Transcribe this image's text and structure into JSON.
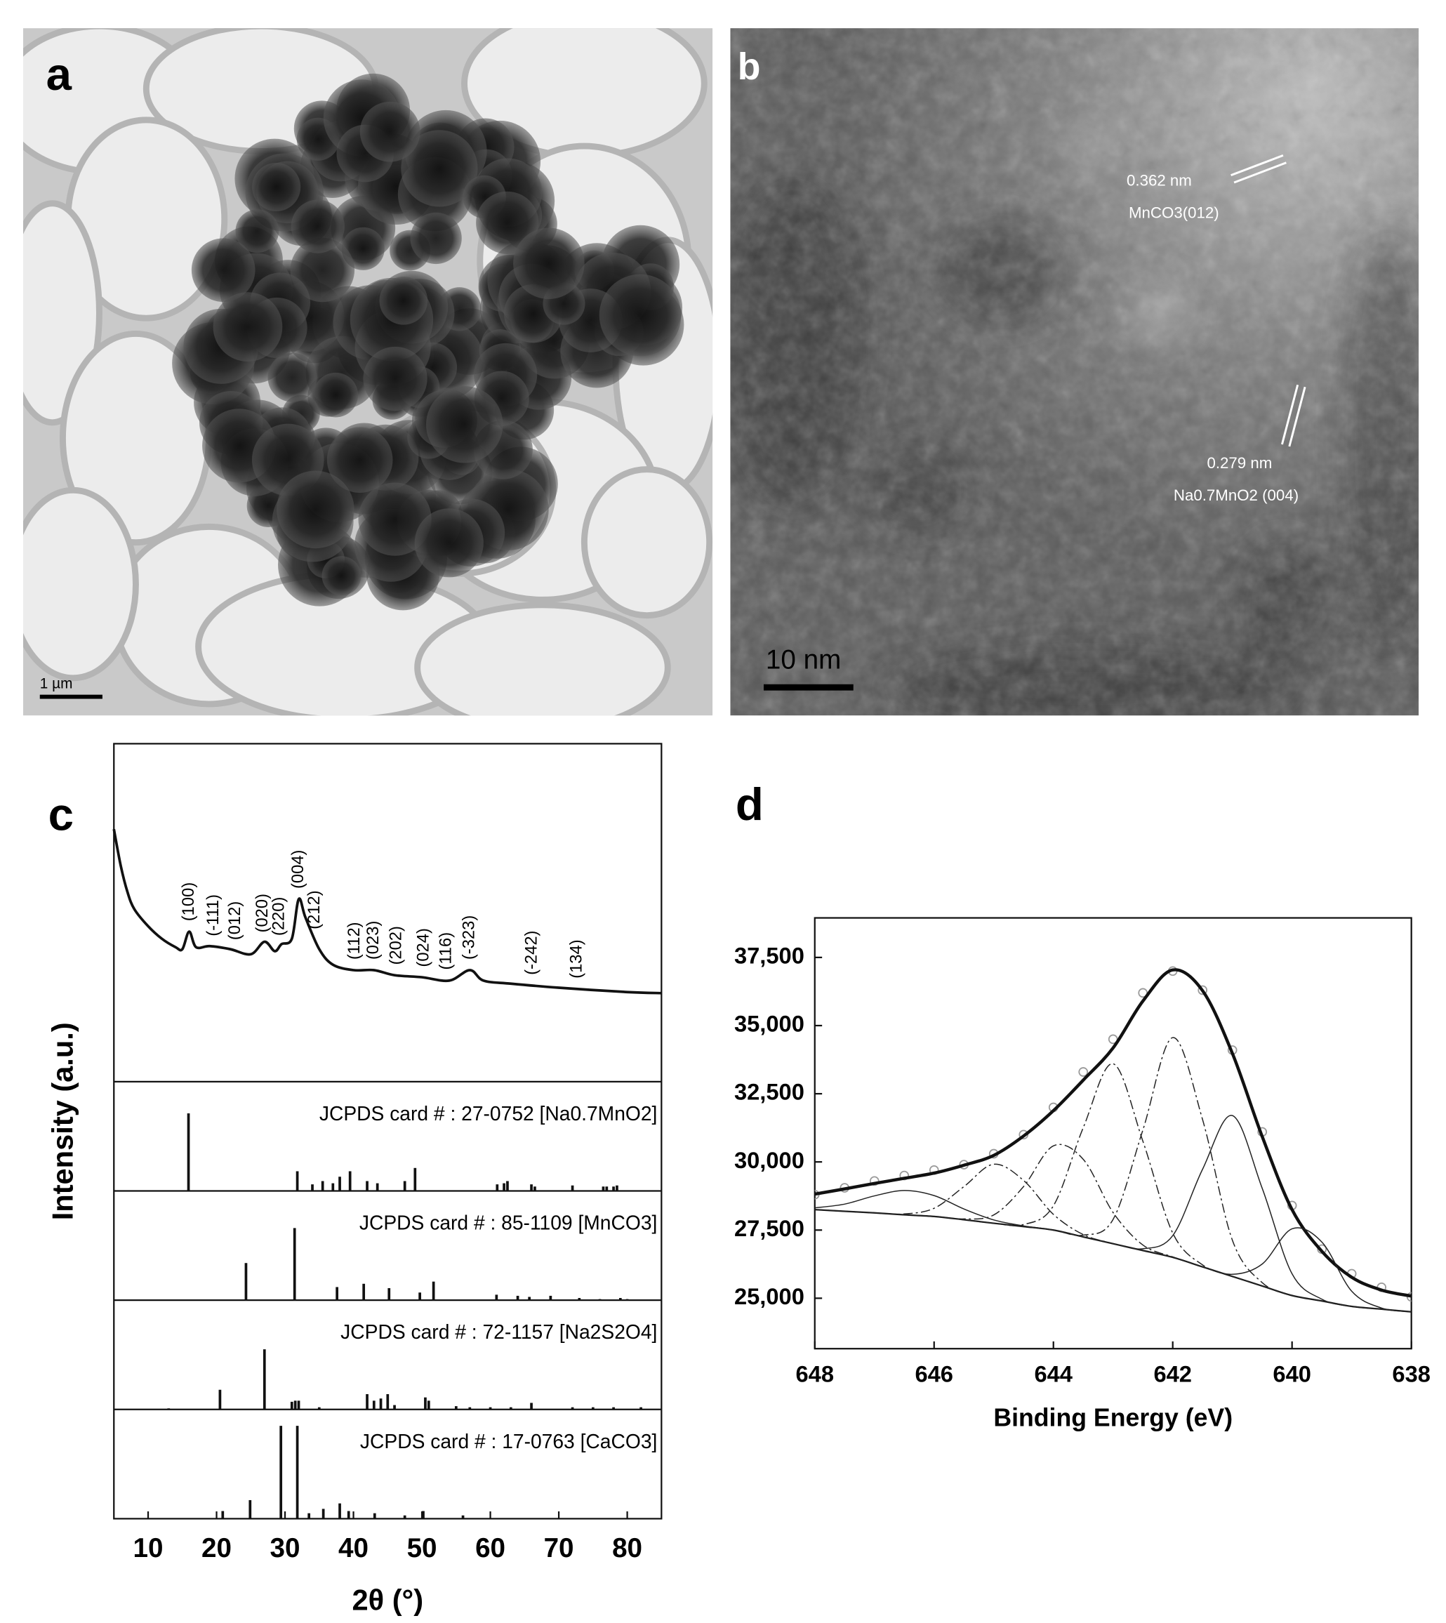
{
  "images": [
    {
      "panel": "a",
      "scale_bar": "1 µm"
    },
    {
      "panel": "b",
      "scale_bar": "10 nm",
      "annotations": [
        "0.362 nm",
        "MnCO3(012)",
        "0.279 nm",
        "Na0.7MnO2 (004)"
      ]
    }
  ],
  "chart_data": [
    {
      "panel": "c",
      "type": "line",
      "xlabel": "2θ (°)",
      "ylabel": "Intensity (a.u.)",
      "xlim": [
        5,
        85
      ],
      "xticks": [
        10,
        20,
        30,
        40,
        50,
        60,
        70,
        80
      ],
      "ylim": [
        0,
        100
      ],
      "color": "#111111",
      "x": [
        5,
        6,
        7,
        8,
        10,
        12,
        14,
        15,
        16,
        17,
        19,
        22,
        25,
        27,
        28.5,
        29.5,
        31,
        32,
        33,
        35,
        37,
        40,
        43,
        46,
        50,
        54,
        57,
        59,
        63,
        70,
        80,
        85
      ],
      "values": [
        74.7,
        63.9,
        56,
        51,
        46,
        42.3,
        39.8,
        39.2,
        44.4,
        39.8,
        40.1,
        39.2,
        37.7,
        41.4,
        38.6,
        40.7,
        42.3,
        54,
        48.5,
        39.2,
        34.6,
        33,
        33,
        31.5,
        30.9,
        29.9,
        33,
        29.9,
        29,
        27.8,
        26.5,
        26.2
      ],
      "annotations": [
        {
          "text": "(100)",
          "x": 16
        },
        {
          "text": "(-111)",
          "x": 19.6
        },
        {
          "text": "(012)",
          "x": 22.8
        },
        {
          "text": "(020)",
          "x": 26.8
        },
        {
          "text": "(220)",
          "x": 29.2
        },
        {
          "text": "(004)",
          "x": 32
        },
        {
          "text": "(212)",
          "x": 34.4
        },
        {
          "text": "(112)",
          "x": 40.2
        },
        {
          "text": "(023)",
          "x": 43
        },
        {
          "text": "(202)",
          "x": 46.3
        },
        {
          "text": "(024)",
          "x": 50.3
        },
        {
          "text": "(116)",
          "x": 53.6
        },
        {
          "text": "(-323)",
          "x": 57
        },
        {
          "text": "(-242)",
          "x": 66.1
        },
        {
          "text": "(134)",
          "x": 72.7
        }
      ],
      "references": [
        {
          "label": "JCPDS card # : 27-0752 [Na0.7MnO2]",
          "x": [
            15.9,
            31.8,
            34,
            35.5,
            37,
            38,
            39.5,
            42,
            43.5,
            47.5,
            49,
            61,
            62,
            62.5,
            66,
            66.5,
            72,
            76.5,
            77,
            78,
            78.5
          ],
          "values": [
            71,
            18,
            6,
            9,
            7,
            13,
            18,
            9,
            7,
            9,
            21,
            6,
            7,
            9,
            6,
            4,
            5,
            4,
            4,
            4,
            5
          ]
        },
        {
          "label": "JCPDS card # : 85-1109 [MnCO3]",
          "x": [
            24.3,
            31.4,
            37.6,
            41.5,
            45.2,
            49.7,
            51.7,
            60.9,
            64,
            65.7,
            68.8,
            73,
            76,
            79,
            80
          ],
          "values": [
            34,
            66,
            12,
            15,
            11,
            7,
            17,
            5,
            4,
            3,
            4,
            2,
            1,
            2,
            1
          ]
        },
        {
          "label": "JCPDS card # : 72-1157 [Na2S2O4]",
          "x": [
            13,
            20.5,
            27,
            31,
            31.5,
            32,
            35,
            42,
            43,
            44,
            45,
            46,
            50.5,
            51,
            55,
            57,
            60,
            63,
            66,
            72,
            75,
            78,
            82
          ],
          "values": [
            1,
            18,
            55,
            7,
            8,
            8,
            2,
            14,
            8,
            10,
            14,
            4,
            11,
            8,
            3,
            2,
            2,
            2,
            6,
            2,
            2,
            2,
            2
          ]
        },
        {
          "label": "JCPDS card # : 17-0763 [CaCO3]",
          "x": [
            20.9,
            24.9,
            29.4,
            31.8,
            33.5,
            35.6,
            38,
            39.3,
            43.1,
            47.5,
            50.2,
            56
          ],
          "values": [
            7,
            17,
            85,
            85,
            5,
            9,
            14,
            7,
            5,
            3,
            7,
            3
          ]
        }
      ]
    },
    {
      "panel": "d",
      "type": "line",
      "xlabel": "Binding Energy (eV)",
      "xlim": [
        648,
        638
      ],
      "xticks": [
        648,
        646,
        644,
        642,
        640,
        638
      ],
      "ylim": [
        23150,
        38950
      ],
      "yticks": [
        {
          "value": 25000,
          "label": "25,000"
        },
        {
          "value": 27500,
          "label": "27,500"
        },
        {
          "value": 30000,
          "label": "30,000"
        },
        {
          "value": 32500,
          "label": "32,500"
        },
        {
          "value": 35000,
          "label": "35,000"
        },
        {
          "value": 37500,
          "label": "37,500"
        }
      ],
      "x": [
        648,
        647.5,
        647,
        646.5,
        646,
        645.5,
        645,
        644.5,
        644,
        643.5,
        643,
        642.5,
        642,
        641.5,
        641,
        640.5,
        640,
        639.5,
        639,
        638.5,
        638
      ],
      "series": [
        {
          "color": "#9a9a9a",
          "marker": "open-circle",
          "values": [
            28800,
            29050,
            29300,
            29500,
            29700,
            29900,
            30300,
            31000,
            32000,
            33300,
            34500,
            36200,
            37000,
            36300,
            34100,
            31100,
            28400,
            26800,
            25900,
            25400,
            25050
          ]
        },
        {
          "color": "#111111",
          "linewidth": 3,
          "dash": "solid",
          "values": [
            28820,
            29010,
            29210,
            29400,
            29590,
            29880,
            30240,
            30950,
            31880,
            33000,
            34180,
            35900,
            37040,
            36280,
            33980,
            30930,
            28250,
            26720,
            25770,
            25300,
            25080
          ]
        },
        {
          "color": "#111111",
          "linewidth": 1.5,
          "dash": "solid",
          "values": [
            28250,
            28190,
            28130,
            28060,
            28000,
            27880,
            27750,
            27630,
            27500,
            27250,
            27000,
            26750,
            26500,
            26150,
            25800,
            25450,
            25100,
            24900,
            24700,
            24600,
            24500
          ]
        },
        {
          "color": "#222222",
          "linewidth": 1,
          "dash": "solid",
          "values": [
            28316,
            28452,
            28754,
            28951,
            28765,
            28274,
            27872,
            27653,
            27503,
            27250,
            27000,
            26750,
            26500,
            26150,
            25800,
            25450,
            25100,
            24900,
            24700,
            24600,
            24500
          ]
        },
        {
          "color": "#222222",
          "linewidth": 1,
          "dash": "dashdot",
          "values": [
            28250,
            28190,
            28130,
            28092,
            28299,
            29094,
            29915,
            29320,
            28076,
            27336,
            27006,
            26750,
            26500,
            26150,
            25800,
            25450,
            25100,
            24900,
            24700,
            24600,
            24500
          ]
        },
        {
          "color": "#222222",
          "linewidth": 1,
          "dash": "dashdot",
          "values": [
            28250,
            28190,
            28130,
            28060,
            28000,
            27908,
            28055,
            29098,
            30589,
            30095,
            28145,
            26952,
            26516,
            26150,
            25800,
            25450,
            25100,
            24900,
            24700,
            24600,
            24500
          ]
        },
        {
          "color": "#222222",
          "linewidth": 1,
          "dash": "dashdot",
          "values": [
            28250,
            28190,
            28130,
            28060,
            28000,
            27880,
            27750,
            27703,
            28391,
            31256,
            33600,
            30756,
            27391,
            26223,
            25800,
            25450,
            25100,
            24900,
            24700,
            24600,
            24500
          ]
        },
        {
          "color": "#222222",
          "linewidth": 1,
          "dash": "dashdot",
          "values": [
            28250,
            28190,
            28130,
            28060,
            28000,
            27880,
            27750,
            27630,
            27500,
            27315,
            27891,
            31173,
            34560,
            31553,
            27128,
            25572,
            25104,
            24900,
            24700,
            24600,
            24500
          ]
        },
        {
          "color": "#222222",
          "linewidth": 1,
          "dash": "solid",
          "values": [
            28250,
            28190,
            28130,
            28060,
            28000,
            27880,
            27750,
            27630,
            27500,
            27250,
            27000,
            26815,
            27297,
            29731,
            31700,
            29031,
            25897,
            24965,
            24700,
            24600,
            24500
          ]
        },
        {
          "color": "#222222",
          "linewidth": 1,
          "dash": "solid",
          "values": [
            28250,
            28190,
            28130,
            28060,
            28000,
            27880,
            27750,
            27630,
            27500,
            27250,
            27000,
            26750,
            26500,
            26150,
            25878,
            26255,
            27546,
            27060,
            25256,
            24642,
            24500
          ]
        }
      ]
    }
  ]
}
